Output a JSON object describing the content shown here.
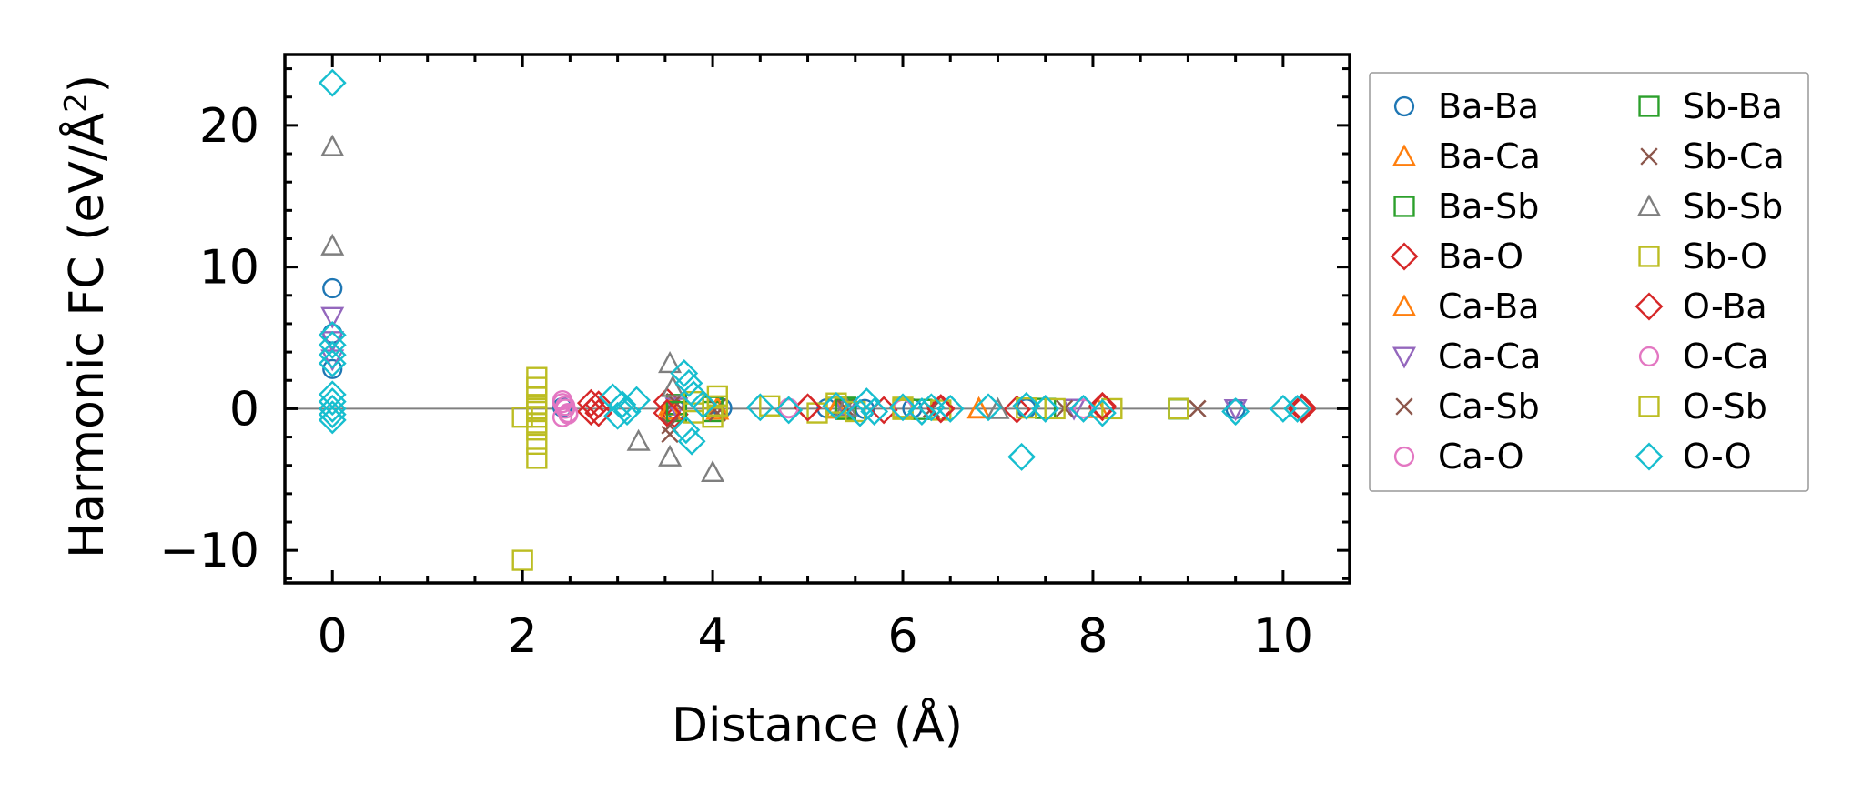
{
  "chart_data": {
    "type": "scatter",
    "title": "",
    "xlabel": "Distance (Å)",
    "ylabel_main": "Harmonic FC (eV/Å",
    "ylabel_sup": "2",
    "ylabel_close": ")",
    "xlim": [
      -0.5,
      10.7
    ],
    "ylim": [
      -12.3,
      25
    ],
    "xticks": [
      0,
      2,
      4,
      6,
      8,
      10
    ],
    "xtick_labels": [
      "0",
      "2",
      "4",
      "6",
      "8",
      "10"
    ],
    "yticks": [
      -10,
      0,
      10,
      20
    ],
    "ytick_labels": [
      "−10",
      "0",
      "10",
      "20"
    ],
    "zero_line": true,
    "grid": false,
    "legend_position": "outside-right",
    "series": [
      {
        "name": "Ba-Ba",
        "marker": "circle",
        "color": "#1f77b4",
        "x": [
          0,
          0,
          0,
          2.42,
          3.62,
          4.1,
          5.2,
          5.6,
          6.1,
          7.3,
          9.5
        ],
        "y": [
          8.5,
          2.8,
          5.3,
          0.1,
          -0.1,
          0.05,
          0.03,
          -0.02,
          0.02,
          0.01,
          -0.02
        ]
      },
      {
        "name": "Ba-Ca",
        "marker": "triangle-up",
        "color": "#ff7f0e",
        "x": [
          3.55,
          4.05,
          5.3,
          6.8,
          8.05
        ],
        "y": [
          0.2,
          -0.1,
          0.05,
          -0.02,
          0.01
        ]
      },
      {
        "name": "Ba-Sb",
        "marker": "square",
        "color": "#2ca02c",
        "x": [
          3.62,
          4.0,
          5.4,
          6.2,
          7.5,
          8.9
        ],
        "y": [
          0.3,
          -0.2,
          0.1,
          -0.05,
          0.02,
          0.01
        ]
      },
      {
        "name": "Ba-O",
        "marker": "diamond",
        "color": "#d62728",
        "x": [
          2.72,
          2.8,
          3.52,
          3.6,
          5.0,
          5.8,
          6.4,
          7.2,
          8.1,
          10.2
        ],
        "y": [
          0.4,
          -0.3,
          0.5,
          -0.4,
          0.1,
          -0.1,
          0.05,
          -0.05,
          0.1,
          0.1
        ]
      },
      {
        "name": "Ca-Ba",
        "marker": "triangle-up",
        "color": "#ff7f0e",
        "x": [
          3.55,
          4.05,
          5.3,
          6.8
        ],
        "y": [
          -0.1,
          0.08,
          -0.03,
          0.01
        ]
      },
      {
        "name": "Ca-Ca",
        "marker": "triangle-down",
        "color": "#9467bd",
        "x": [
          0,
          0,
          0,
          3.62,
          5.4,
          7.8,
          9.5
        ],
        "y": [
          6.5,
          4.8,
          3.5,
          0.1,
          -0.05,
          0.02,
          -0.01
        ]
      },
      {
        "name": "Ca-Sb",
        "marker": "x",
        "color": "#8c564b",
        "x": [
          3.55,
          3.6,
          4.05,
          5.4,
          6.3,
          7.7,
          9.1
        ],
        "y": [
          -1.8,
          0.5,
          0.1,
          0.05,
          -0.03,
          0.02,
          0.01
        ]
      },
      {
        "name": "Ca-O",
        "marker": "circle",
        "color": "#e377c2",
        "x": [
          2.42,
          2.45,
          2.48,
          2.42,
          2.45,
          4.8,
          6.0,
          7.9
        ],
        "y": [
          0.6,
          0.2,
          -0.3,
          -0.6,
          0.0,
          0.05,
          -0.02,
          0.01
        ]
      },
      {
        "name": "Sb-Ba",
        "marker": "square",
        "color": "#2ca02c",
        "x": [
          3.62,
          4.0,
          5.4,
          8.9
        ],
        "y": [
          -0.2,
          0.15,
          -0.05,
          -0.02
        ]
      },
      {
        "name": "Sb-Ca",
        "marker": "x",
        "color": "#8c564b",
        "x": [
          3.55,
          4.05,
          5.4,
          9.1
        ],
        "y": [
          -1.2,
          -0.3,
          0.04,
          0.0
        ]
      },
      {
        "name": "Sb-Sb",
        "marker": "triangle-up",
        "color": "#7f7f7f",
        "x": [
          0,
          0,
          3.22,
          3.55,
          3.55,
          3.58,
          4.0,
          5.4,
          7.0
        ],
        "y": [
          18.5,
          11.5,
          -2.3,
          3.2,
          -3.4,
          1.5,
          -4.5,
          0.1,
          -0.05
        ]
      },
      {
        "name": "Sb-O",
        "marker": "square",
        "color": "#bcbd22",
        "x": [
          2.0,
          2.0,
          2.15,
          2.15,
          2.15,
          2.15,
          2.15,
          2.15,
          2.15,
          2.15,
          2.15,
          2.15,
          3.8,
          4.0,
          4.05,
          4.6,
          5.1,
          5.3,
          5.5,
          6.0,
          6.4,
          7.3,
          7.6,
          8.2,
          8.9
        ],
        "y": [
          -10.7,
          -0.6,
          2.2,
          1.5,
          0.8,
          0.3,
          -0.2,
          -0.6,
          -1.0,
          -1.5,
          -2.5,
          -3.5,
          0.5,
          -0.6,
          0.9,
          0.2,
          -0.3,
          0.4,
          -0.2,
          0.1,
          -0.1,
          0.05,
          0.0,
          0.0,
          0.0
        ]
      },
      {
        "name": "O-Ba",
        "marker": "diamond",
        "color": "#d62728",
        "x": [
          2.72,
          2.8,
          3.52,
          5.0,
          6.4,
          8.1,
          10.2
        ],
        "y": [
          -0.2,
          0.3,
          -0.3,
          0.08,
          -0.04,
          0.2,
          -0.05
        ]
      },
      {
        "name": "O-Ca",
        "marker": "circle",
        "color": "#e377c2",
        "x": [
          2.42,
          2.48,
          4.8,
          7.9
        ],
        "y": [
          0.4,
          -0.4,
          0.02,
          0.0
        ]
      },
      {
        "name": "O-Sb",
        "marker": "square",
        "color": "#bcbd22",
        "x": [
          2.15,
          3.8,
          4.05,
          5.3,
          6.0,
          8.9
        ],
        "y": [
          0.0,
          -0.3,
          0.2,
          0.1,
          -0.05,
          0.0
        ]
      },
      {
        "name": "O-O",
        "marker": "diamond",
        "color": "#17becf",
        "x": [
          0,
          0,
          0,
          0,
          0,
          0,
          0,
          0,
          0,
          0,
          2.95,
          3.0,
          3.05,
          3.1,
          3.2,
          3.7,
          3.75,
          3.8,
          3.72,
          3.78,
          3.9,
          4.5,
          4.8,
          5.3,
          5.55,
          5.62,
          5.7,
          6.0,
          6.2,
          6.3,
          6.5,
          6.9,
          7.25,
          7.3,
          7.5,
          7.9,
          8.1,
          9.5,
          10.0,
          10.15
        ],
        "y": [
          23.0,
          5.2,
          4.5,
          3.8,
          3.2,
          1.0,
          0.5,
          0.0,
          -0.4,
          -0.8,
          0.8,
          -0.5,
          0.3,
          -0.2,
          0.6,
          2.5,
          1.8,
          1.0,
          -1.5,
          -2.3,
          0.3,
          0.1,
          -0.1,
          0.2,
          -0.3,
          0.5,
          -0.2,
          0.1,
          -0.2,
          0.1,
          0.0,
          0.1,
          -3.4,
          0.2,
          0.0,
          0.0,
          -0.3,
          -0.2,
          0.0,
          0.0
        ]
      }
    ]
  }
}
